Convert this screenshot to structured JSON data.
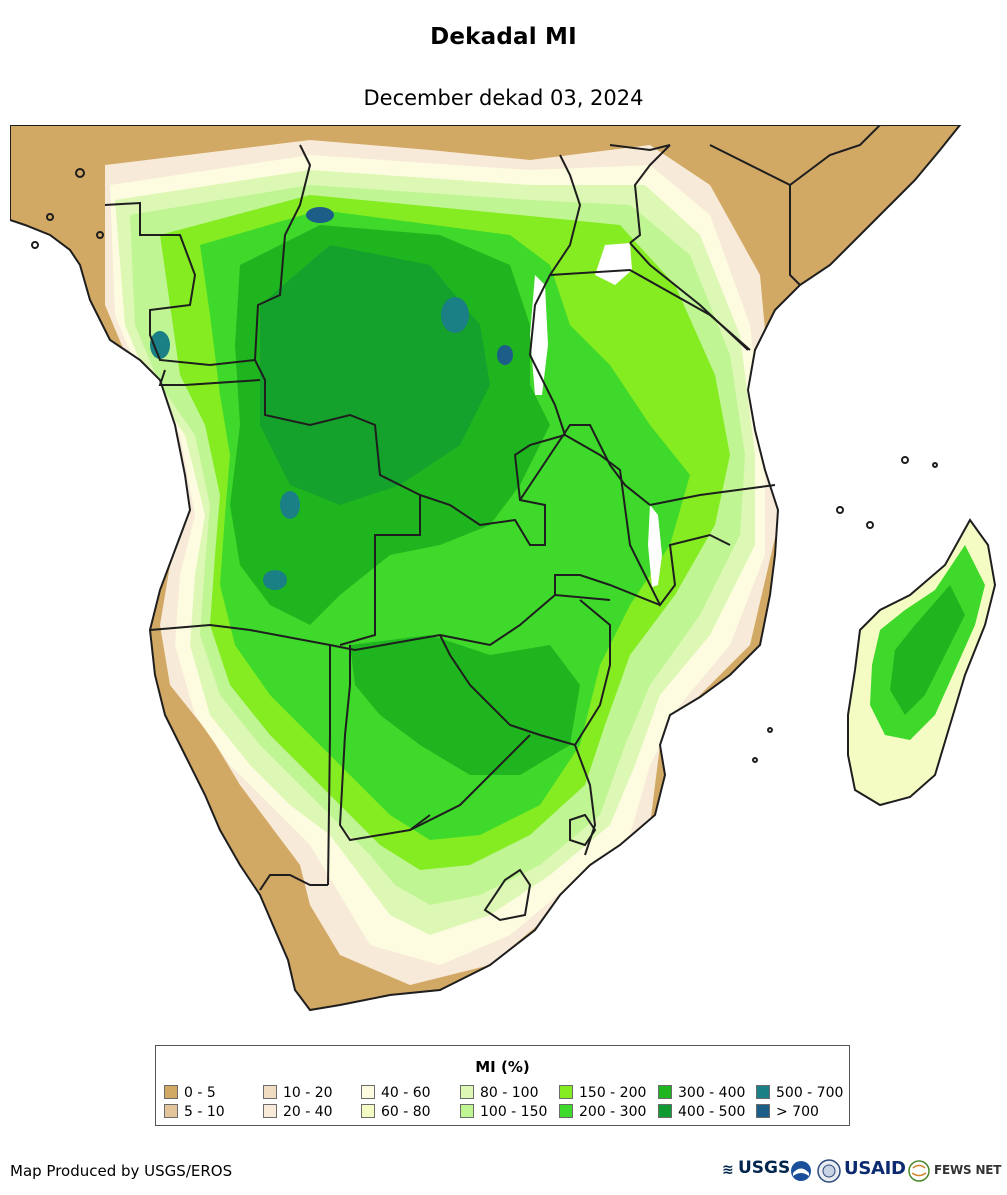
{
  "header": {
    "title": "Dekadal MI",
    "subtitle": "December dekad 03, 2024"
  },
  "legend": {
    "title": "MI (%)",
    "classes": [
      {
        "label": "0 - 5",
        "color": "#d2a865"
      },
      {
        "label": "5 - 10",
        "color": "#e2c59a"
      },
      {
        "label": "10 - 20",
        "color": "#f0dcc0"
      },
      {
        "label": "20 - 40",
        "color": "#f8ead8"
      },
      {
        "label": "40 - 60",
        "color": "#fdfce0"
      },
      {
        "label": "60 - 80",
        "color": "#f4fbc3"
      },
      {
        "label": "80 - 100",
        "color": "#ddf7b4"
      },
      {
        "label": "100 - 150",
        "color": "#bff593"
      },
      {
        "label": "150 - 200",
        "color": "#85ec22"
      },
      {
        "label": "200 - 300",
        "color": "#3ed92a"
      },
      {
        "label": "300 - 400",
        "color": "#1fb51f"
      },
      {
        "label": "400 - 500",
        "color": "#0f9a32"
      },
      {
        "label": "500 - 700",
        "color": "#1a8085"
      },
      {
        "label": "> 700",
        "color": "#1d5e88"
      }
    ]
  },
  "footer": {
    "credit": "Map Produced by USGS/EROS",
    "logos": {
      "usgs": "USGS",
      "usaid": "USAID",
      "fews": "FEWS NET"
    }
  },
  "colors": {
    "ocean": "#ffffff",
    "border": "#1e1e1e",
    "lake": "#ffffff"
  }
}
